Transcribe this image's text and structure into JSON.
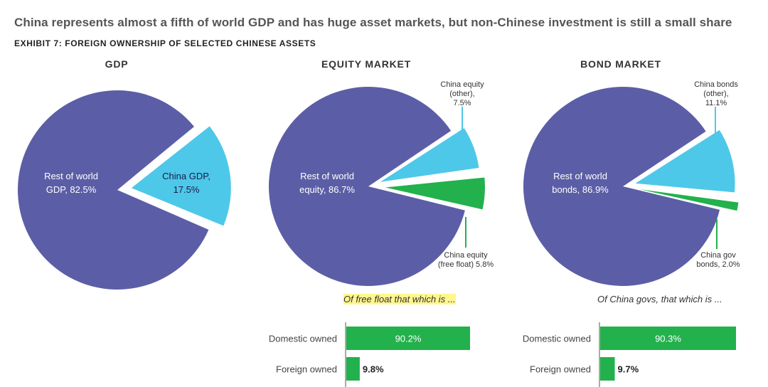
{
  "title": "China represents almost a fifth of world GDP and has huge asset markets, but non-Chinese investment is still a small share",
  "subtitle": "EXHIBIT 7: FOREIGN OWNERSHIP OF SELECTED CHINESE ASSETS",
  "colors": {
    "rest": "#5b5ea6",
    "china_light": "#4ec8e8",
    "china_green": "#22b14c",
    "highlight": "#fff68f"
  },
  "chart_data": [
    {
      "type": "pie",
      "title": "GDP",
      "slices": [
        {
          "label": "Rest of world GDP, 82.5%",
          "value": 82.5,
          "color": "#5b5ea6"
        },
        {
          "label": "China GDP, 17.5%",
          "value": 17.5,
          "color": "#4ec8e8"
        }
      ]
    },
    {
      "type": "pie",
      "title": "EQUITY MARKET",
      "slices": [
        {
          "label": "Rest of world equity, 86.7%",
          "value": 86.7,
          "color": "#5b5ea6"
        },
        {
          "label": "China equity (other), 7.5%",
          "value": 7.5,
          "color": "#4ec8e8"
        },
        {
          "label": "China equity (free float) 5.8%",
          "value": 5.8,
          "color": "#22b14c"
        }
      ]
    },
    {
      "type": "pie",
      "title": "BOND MARKET",
      "slices": [
        {
          "label": "Rest of world bonds, 86.9%",
          "value": 86.9,
          "color": "#5b5ea6"
        },
        {
          "label": "China bonds (other), 11.1%",
          "value": 11.1,
          "color": "#4ec8e8"
        },
        {
          "label": "China gov bonds, 2.0%",
          "value": 2.0,
          "color": "#22b14c"
        }
      ]
    },
    {
      "type": "bar",
      "title": "Of free float that which is ...",
      "categories": [
        "Domestic owned",
        "Foreign owned"
      ],
      "values": [
        90.2,
        9.8
      ],
      "value_labels": [
        "90.2%",
        "9.8%"
      ]
    },
    {
      "type": "bar",
      "title": "Of China govs, that which is ...",
      "categories": [
        "Domestic owned",
        "Foreign owned"
      ],
      "values": [
        90.3,
        9.7
      ],
      "value_labels": [
        "90.3%",
        "9.7%"
      ]
    }
  ]
}
